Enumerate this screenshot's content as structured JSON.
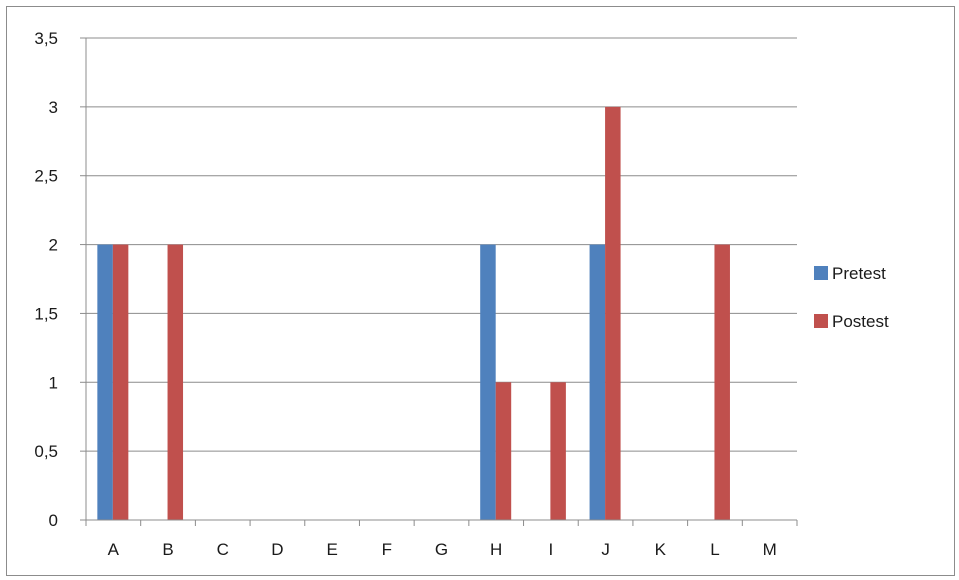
{
  "chart_data": {
    "type": "bar",
    "title": "",
    "xlabel": "",
    "ylabel": "",
    "categories": [
      "A",
      "B",
      "C",
      "D",
      "E",
      "F",
      "G",
      "H",
      "I",
      "J",
      "K",
      "L",
      "M"
    ],
    "series": [
      {
        "name": "Pretest",
        "color": "#4f81bd",
        "values": [
          2,
          0,
          0,
          0,
          0,
          0,
          0,
          2,
          0,
          2,
          0,
          0,
          0
        ]
      },
      {
        "name": "Postest",
        "color": "#c0504d",
        "values": [
          2,
          2,
          0,
          0,
          0,
          0,
          0,
          1,
          1,
          3,
          0,
          2,
          0
        ]
      }
    ],
    "ylim": [
      0,
      3.5
    ],
    "yticks": [
      "0",
      "0,5",
      "1",
      "1,5",
      "2",
      "2,5",
      "3",
      "3,5"
    ],
    "grid": true,
    "legend_position": "right"
  }
}
